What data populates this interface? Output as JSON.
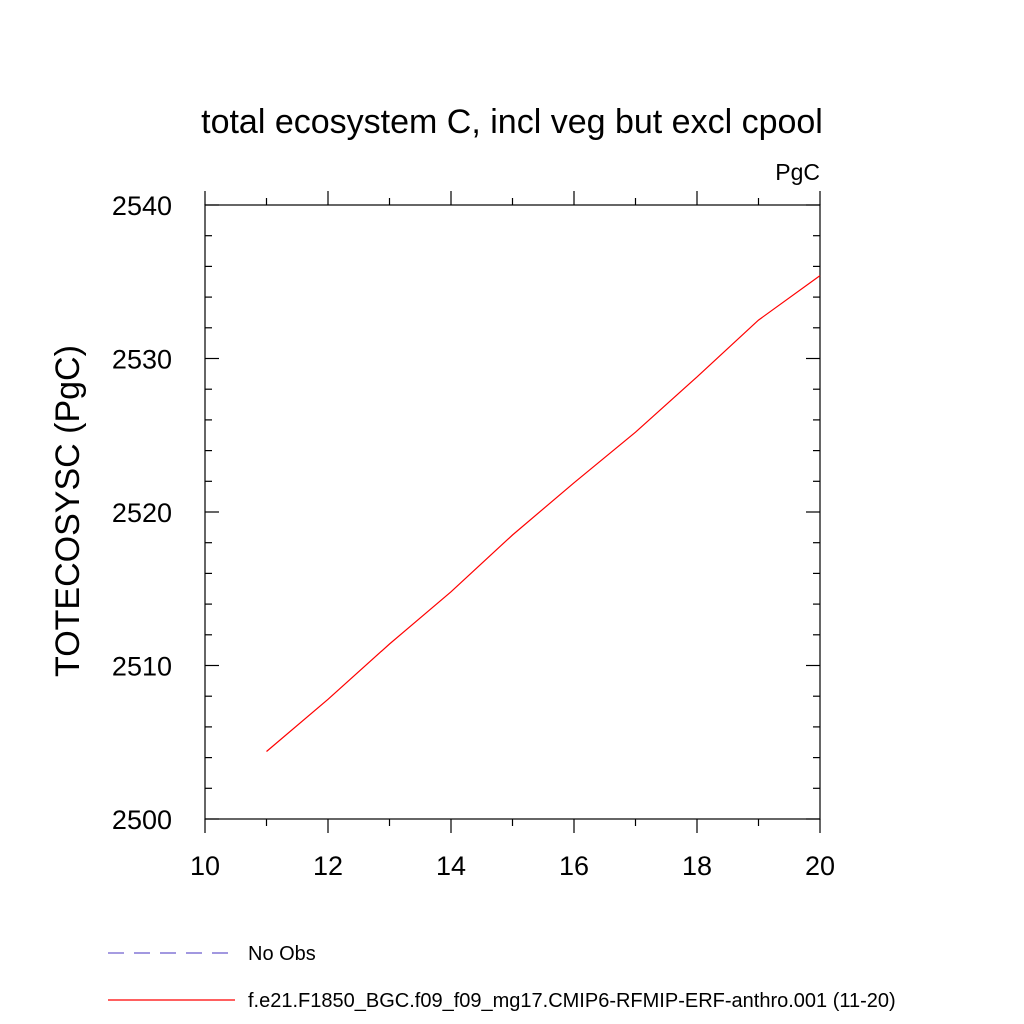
{
  "chart_data": {
    "type": "line",
    "title": "total ecosystem C, incl veg but excl cpool",
    "units": "PgC",
    "xlabel": "",
    "ylabel": "TOTECOSYSC  (PgC)",
    "xlim": [
      10,
      20
    ],
    "ylim": [
      2500,
      2540
    ],
    "xticks": [
      10,
      12,
      14,
      16,
      18,
      20
    ],
    "yticks": [
      2500,
      2510,
      2520,
      2530,
      2540
    ],
    "x_minor_step": 1,
    "y_minor_step": 2,
    "grid": false,
    "series": [
      {
        "name": "f.e21.F1850_BGC.f09_f09_mg17.CMIP6-RFMIP-ERF-anthro.001 (11-20)",
        "color": "#ff0000",
        "style": "solid",
        "x": [
          11,
          12,
          13,
          14,
          15,
          16,
          17,
          18,
          19,
          20
        ],
        "values": [
          2504.4,
          2507.8,
          2511.4,
          2514.8,
          2518.5,
          2521.9,
          2525.2,
          2528.8,
          2532.5,
          2535.4
        ]
      }
    ],
    "legend": [
      {
        "label": "No Obs",
        "color": "#6a5acd",
        "style": "dashed"
      },
      {
        "label": "f.e21.F1850_BGC.f09_f09_mg17.CMIP6-RFMIP-ERF-anthro.001 (11-20)",
        "color": "#ff0000",
        "style": "solid"
      }
    ],
    "legend_position": "bottom-left"
  }
}
